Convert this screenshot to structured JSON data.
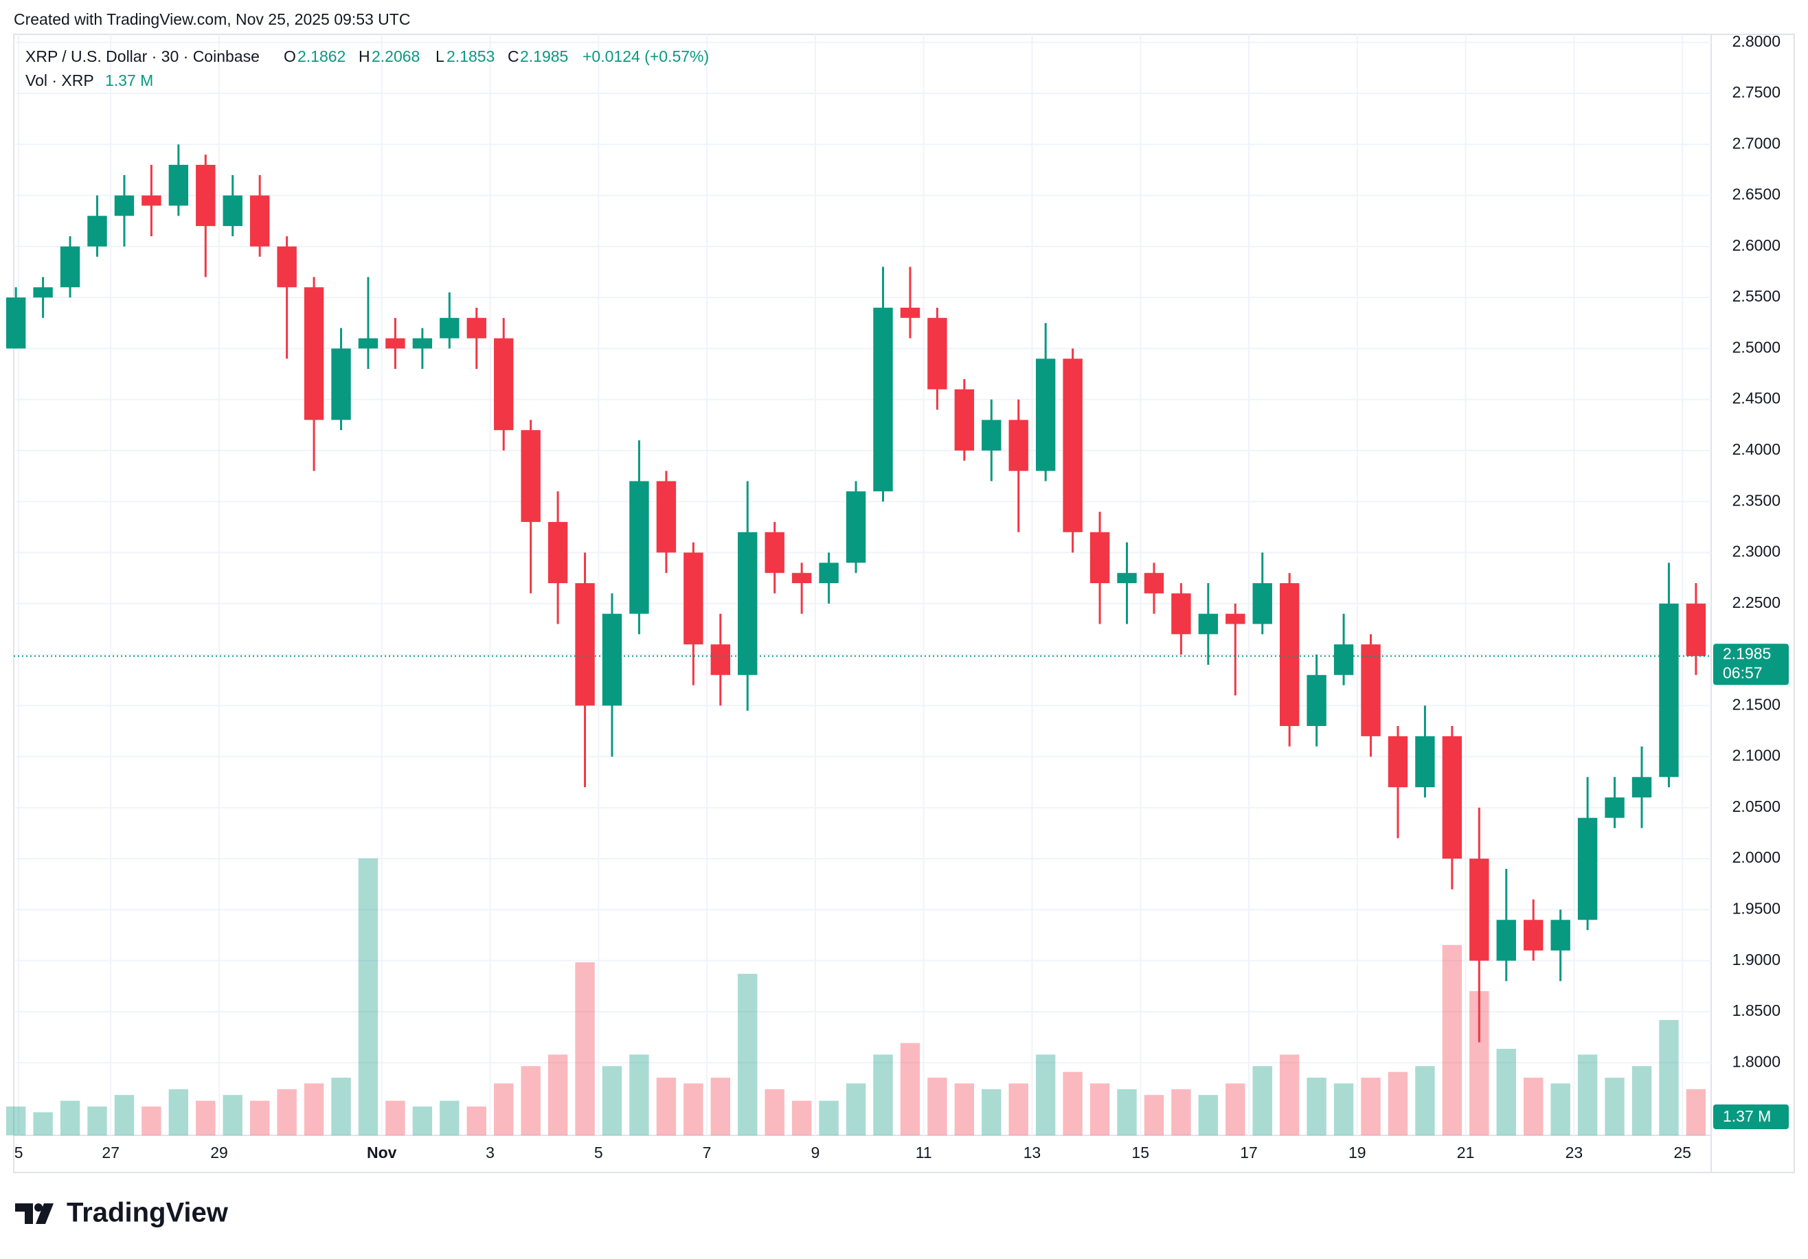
{
  "header": {
    "credit": "Created with TradingView.com, Nov 25, 2025 09:53 UTC",
    "logo": "TradingView"
  },
  "chart_data": {
    "type": "candlestick",
    "title": "XRP / U.S. Dollar · 30 · Coinbase",
    "legend": {
      "o_label": "O",
      "o": 2.1862,
      "h_label": "H",
      "h": 2.2068,
      "l_label": "L",
      "l": 2.1853,
      "c_label": "C",
      "c": 2.1985,
      "change": "+0.0124 (+0.57%)",
      "vol_title": "Vol · XRP",
      "vol": "1.37 M"
    },
    "last_price": 2.1985,
    "countdown": "06:57",
    "volume_label": "1.37 M",
    "up_color": "#089981",
    "down_color": "#f23645",
    "grid": true,
    "x": [
      0.25,
      0.75,
      1.25,
      1.75,
      2.25,
      2.75,
      3.25,
      3.75,
      4.25,
      4.75,
      5.25,
      5.75,
      6.25,
      6.75,
      7.25,
      7.75,
      8.25,
      8.75,
      9.25,
      9.75,
      10.25,
      10.75,
      11.25,
      11.75,
      12.25,
      12.75,
      13.25,
      13.75,
      14.25,
      14.75,
      15.25,
      15.75,
      16.25,
      16.75,
      17.25,
      17.75,
      18.25,
      18.75,
      19.25,
      19.75,
      20.25,
      20.75,
      21.25,
      21.75,
      22.25,
      22.75,
      23.25,
      23.75,
      24.25,
      24.75,
      25.25,
      25.75,
      26.25,
      26.75,
      27.25,
      27.75,
      28.25,
      28.75,
      29.25,
      29.75,
      30.25,
      30.75,
      31.25
    ],
    "open": [
      2.5,
      2.55,
      2.56,
      2.6,
      2.63,
      2.65,
      2.64,
      2.68,
      2.62,
      2.65,
      2.6,
      2.56,
      2.43,
      2.5,
      2.51,
      2.5,
      2.51,
      2.53,
      2.51,
      2.42,
      2.33,
      2.27,
      2.15,
      2.24,
      2.37,
      2.3,
      2.21,
      2.18,
      2.32,
      2.28,
      2.27,
      2.29,
      2.36,
      2.54,
      2.53,
      2.46,
      2.4,
      2.43,
      2.38,
      2.49,
      2.32,
      2.27,
      2.28,
      2.26,
      2.22,
      2.24,
      2.23,
      2.27,
      2.13,
      2.18,
      2.21,
      2.12,
      2.07,
      2.12,
      2.0,
      1.9,
      1.94,
      1.91,
      1.94,
      2.04,
      2.06,
      2.08,
      2.25
    ],
    "high": [
      2.56,
      2.57,
      2.61,
      2.65,
      2.67,
      2.68,
      2.7,
      2.69,
      2.67,
      2.67,
      2.61,
      2.57,
      2.52,
      2.57,
      2.53,
      2.52,
      2.555,
      2.54,
      2.53,
      2.43,
      2.36,
      2.3,
      2.26,
      2.41,
      2.38,
      2.31,
      2.24,
      2.37,
      2.33,
      2.29,
      2.3,
      2.37,
      2.58,
      2.58,
      2.54,
      2.47,
      2.45,
      2.45,
      2.525,
      2.5,
      2.34,
      2.31,
      2.29,
      2.27,
      2.27,
      2.25,
      2.3,
      2.28,
      2.2,
      2.24,
      2.22,
      2.13,
      2.15,
      2.13,
      2.05,
      1.99,
      1.96,
      1.95,
      2.08,
      2.08,
      2.11,
      2.29,
      2.27
    ],
    "low": [
      2.5,
      2.53,
      2.55,
      2.59,
      2.6,
      2.61,
      2.63,
      2.57,
      2.61,
      2.59,
      2.49,
      2.38,
      2.42,
      2.48,
      2.48,
      2.48,
      2.5,
      2.48,
      2.4,
      2.26,
      2.23,
      2.07,
      2.1,
      2.22,
      2.28,
      2.17,
      2.15,
      2.145,
      2.26,
      2.24,
      2.25,
      2.28,
      2.35,
      2.51,
      2.44,
      2.39,
      2.37,
      2.32,
      2.37,
      2.3,
      2.23,
      2.23,
      2.24,
      2.2,
      2.19,
      2.16,
      2.22,
      2.11,
      2.11,
      2.17,
      2.1,
      2.02,
      2.06,
      1.97,
      1.82,
      1.88,
      1.9,
      1.88,
      1.93,
      2.03,
      2.03,
      2.07,
      2.18
    ],
    "close": [
      2.55,
      2.56,
      2.6,
      2.63,
      2.65,
      2.64,
      2.68,
      2.62,
      2.65,
      2.6,
      2.56,
      2.43,
      2.5,
      2.51,
      2.5,
      2.51,
      2.53,
      2.51,
      2.42,
      2.33,
      2.27,
      2.15,
      2.24,
      2.37,
      2.3,
      2.21,
      2.18,
      2.32,
      2.28,
      2.27,
      2.29,
      2.36,
      2.54,
      2.53,
      2.46,
      2.4,
      2.43,
      2.38,
      2.49,
      2.32,
      2.27,
      2.28,
      2.26,
      2.22,
      2.24,
      2.23,
      2.27,
      2.13,
      2.18,
      2.21,
      2.12,
      2.07,
      2.12,
      2.0,
      1.9,
      1.94,
      1.91,
      1.94,
      2.04,
      2.06,
      2.08,
      2.25,
      2.1985
    ],
    "volume": [
      5,
      4,
      6,
      5,
      7,
      5,
      8,
      6,
      7,
      6,
      8,
      9,
      10,
      48,
      6,
      5,
      6,
      5,
      9,
      12,
      14,
      30,
      12,
      14,
      10,
      9,
      10,
      28,
      8,
      6,
      6,
      9,
      14,
      16,
      10,
      9,
      8,
      9,
      14,
      11,
      9,
      8,
      7,
      8,
      7,
      9,
      12,
      14,
      10,
      9,
      10,
      11,
      12,
      33,
      25,
      15,
      10,
      9,
      14,
      10,
      12,
      20,
      8
    ],
    "xlim": [
      0.21,
      31.53
    ],
    "xticks": [
      {
        "value": 0.3,
        "label": "5"
      },
      {
        "value": 2,
        "label": "27"
      },
      {
        "value": 4,
        "label": "29"
      },
      {
        "value": 7,
        "label": "Nov"
      },
      {
        "value": 9,
        "label": "3"
      },
      {
        "value": 11,
        "label": "5"
      },
      {
        "value": 13,
        "label": "7"
      },
      {
        "value": 15,
        "label": "9"
      },
      {
        "value": 17,
        "label": "11"
      },
      {
        "value": 19,
        "label": "13"
      },
      {
        "value": 21,
        "label": "15"
      },
      {
        "value": 23,
        "label": "17"
      },
      {
        "value": 25,
        "label": "19"
      },
      {
        "value": 27,
        "label": "21"
      },
      {
        "value": 29,
        "label": "23"
      },
      {
        "value": 31,
        "label": "25"
      }
    ],
    "ylim": [
      1.7288,
      2.8079
    ],
    "yticks": [
      {
        "value": 1.8,
        "label": "1.8000"
      },
      {
        "value": 1.85,
        "label": "1.8500"
      },
      {
        "value": 1.9,
        "label": "1.9000"
      },
      {
        "value": 1.95,
        "label": "1.9500"
      },
      {
        "value": 2.0,
        "label": "2.0000"
      },
      {
        "value": 2.05,
        "label": "2.0500"
      },
      {
        "value": 2.1,
        "label": "2.1000"
      },
      {
        "value": 2.15,
        "label": "2.1500"
      },
      {
        "value": 2.2,
        "label": "2.2000"
      },
      {
        "value": 2.25,
        "label": "2.2500"
      },
      {
        "value": 2.3,
        "label": "2.3000"
      },
      {
        "value": 2.35,
        "label": "2.3500"
      },
      {
        "value": 2.4,
        "label": "2.4000"
      },
      {
        "value": 2.45,
        "label": "2.4500"
      },
      {
        "value": 2.5,
        "label": "2.5000"
      },
      {
        "value": 2.55,
        "label": "2.5500"
      },
      {
        "value": 2.6,
        "label": "2.6000"
      },
      {
        "value": 2.65,
        "label": "2.6500"
      },
      {
        "value": 2.7,
        "label": "2.7000"
      },
      {
        "value": 2.75,
        "label": "2.7500"
      },
      {
        "value": 2.8,
        "label": "2.8000"
      }
    ],
    "vlim": [
      0,
      60
    ]
  }
}
